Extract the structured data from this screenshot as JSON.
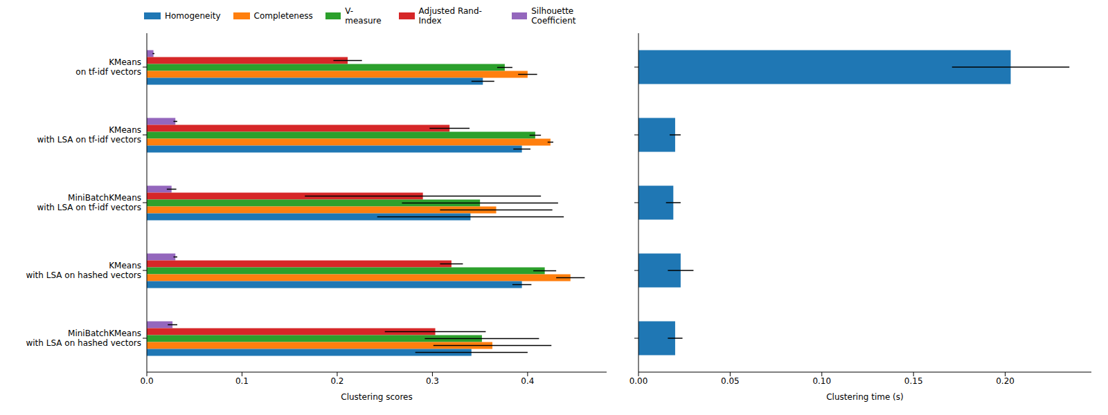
{
  "chart_data": [
    {
      "type": "bar",
      "orientation": "horizontal",
      "legend": "top",
      "xlabel": "Clustering scores",
      "categories": [
        "KMeans\non tf-idf vectors",
        "KMeans\nwith LSA on tf-idf vectors",
        "MiniBatchKMeans\nwith LSA on tf-idf vectors",
        "KMeans\nwith LSA on hashed vectors",
        "MiniBatchKMeans\nwith LSA on hashed vectors"
      ],
      "series": [
        {
          "name": "Homogeneity",
          "color": "#1f77b4",
          "values": [
            0.353,
            0.394,
            0.34,
            0.394,
            0.341
          ],
          "errors": [
            0.012,
            0.009,
            0.098,
            0.01,
            0.059
          ]
        },
        {
          "name": "Completeness",
          "color": "#ff7f0e",
          "values": [
            0.4,
            0.424,
            0.367,
            0.445,
            0.363
          ],
          "errors": [
            0.01,
            0.003,
            0.059,
            0.015,
            0.062
          ]
        },
        {
          "name": "V-measure",
          "color": "#2ca02c",
          "values": [
            0.376,
            0.408,
            0.35,
            0.418,
            0.352
          ],
          "errors": [
            0.008,
            0.006,
            0.082,
            0.012,
            0.06
          ]
        },
        {
          "name": "Adjusted Rand-Index",
          "color": "#d62728",
          "values": [
            0.211,
            0.318,
            0.29,
            0.32,
            0.303
          ],
          "errors": [
            0.015,
            0.021,
            0.124,
            0.012,
            0.053
          ]
        },
        {
          "name": "Silhouette Coefficient",
          "color": "#9467bd",
          "values": [
            0.007,
            0.03,
            0.026,
            0.03,
            0.027
          ],
          "errors": [
            0.001,
            0.002,
            0.005,
            0.002,
            0.005
          ]
        }
      ],
      "xlim": [
        0,
        0.483
      ],
      "xticks": [
        {
          "value": 0,
          "label": "0.0"
        },
        0.1,
        0.2,
        0.3,
        0.4
      ]
    },
    {
      "type": "bar",
      "orientation": "horizontal",
      "tick_labels": "x",
      "xlabel": "Clustering time (s)",
      "categories": [
        "KMeans\non tf-idf vectors",
        "KMeans\nwith LSA on tf-idf vectors",
        "MiniBatchKMeans\nwith LSA on tf-idf vectors",
        "KMeans\nwith LSA on hashed vectors",
        "MiniBatchKMeans\nwith LSA on hashed vectors"
      ],
      "color": "#1f77b4",
      "values": [
        0.203,
        0.02,
        0.019,
        0.023,
        0.02
      ],
      "errors": [
        0.032,
        0.003,
        0.004,
        0.007,
        0.004
      ],
      "xlim": [
        0,
        0.247
      ],
      "xticks": [
        {
          "value": 0,
          "label": "0.00"
        },
        0.05,
        {
          "value": 0.1,
          "label": "0.10"
        },
        {
          "value": 0.15,
          "label": "0.15"
        },
        {
          "value": 0.2,
          "label": "0.20"
        }
      ]
    }
  ]
}
